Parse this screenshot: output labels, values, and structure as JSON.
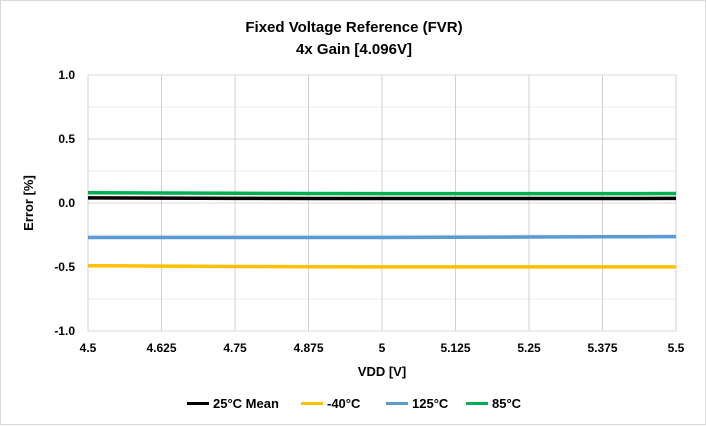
{
  "chart_data": {
    "type": "line",
    "title": "Fixed Voltage Reference (FVR)",
    "subtitle": "4x Gain [4.096V]",
    "xlabel": "VDD [V]",
    "ylabel": "Error [%]",
    "xlim": [
      4.5,
      5.5
    ],
    "ylim": [
      -1.0,
      1.0
    ],
    "x": [
      4.5,
      4.625,
      4.75,
      4.875,
      5,
      5.125,
      5.25,
      5.375,
      5.5
    ],
    "xticks": [
      "4.5",
      "4.625",
      "4.75",
      "4.875",
      "5",
      "5.125",
      "5.25",
      "5.375",
      "5.5"
    ],
    "yticks": [
      "1.0",
      "0.5",
      "0.0",
      "-0.5",
      "-1.0"
    ],
    "grid": true,
    "legend": "bottom",
    "series": [
      {
        "name": "25°C Mean",
        "color": "#000000",
        "values": [
          0.04,
          0.038,
          0.036,
          0.035,
          0.035,
          0.035,
          0.035,
          0.035,
          0.036
        ]
      },
      {
        "name": "-40°C",
        "color": "#FFC000",
        "values": [
          -0.49,
          -0.493,
          -0.496,
          -0.498,
          -0.499,
          -0.499,
          -0.499,
          -0.499,
          -0.499
        ]
      },
      {
        "name": "125°C",
        "color": "#5B9BD5",
        "values": [
          -0.27,
          -0.27,
          -0.27,
          -0.27,
          -0.27,
          -0.268,
          -0.266,
          -0.264,
          -0.263
        ]
      },
      {
        "name": "85°C",
        "color": "#00B050",
        "values": [
          0.08,
          0.078,
          0.076,
          0.074,
          0.073,
          0.073,
          0.073,
          0.073,
          0.074
        ]
      }
    ]
  }
}
